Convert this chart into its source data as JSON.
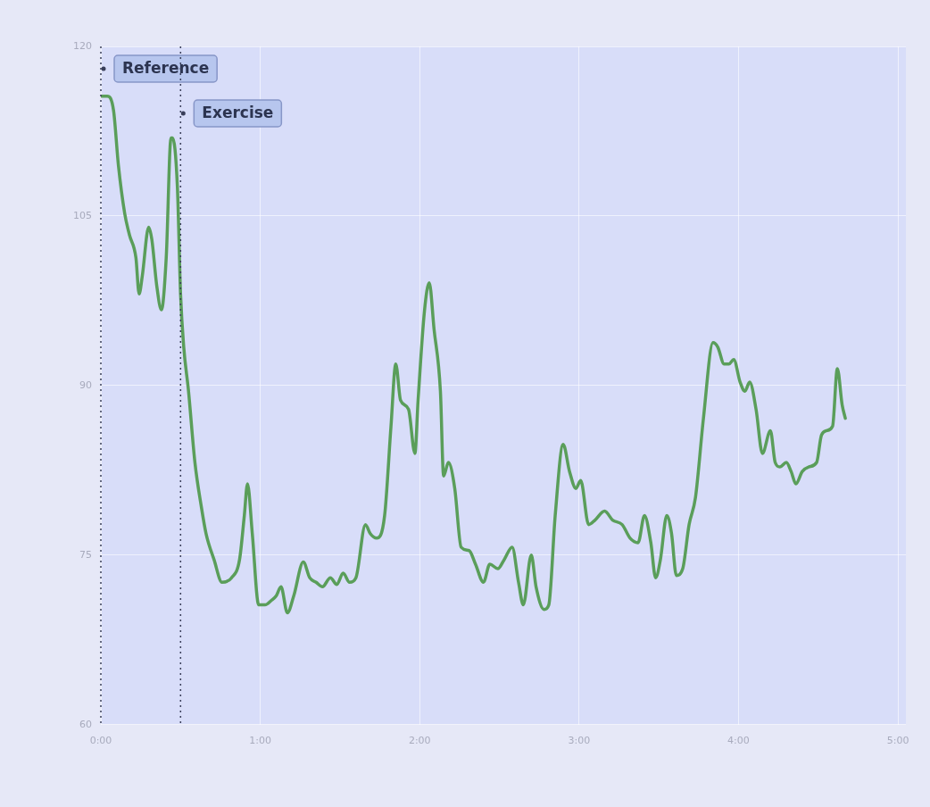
{
  "chart_data": {
    "type": "line",
    "x": [
      0,
      0.04,
      0.08,
      0.11,
      0.15,
      0.18,
      0.22,
      0.24,
      0.26,
      0.3,
      0.32,
      0.35,
      0.38,
      0.41,
      0.44,
      0.45,
      0.48,
      0.5,
      0.52,
      0.55,
      0.59,
      0.63,
      0.66,
      0.71,
      0.76,
      0.82,
      0.87,
      0.9,
      0.92,
      0.95,
      0.99,
      1.03,
      1.07,
      1.1,
      1.13,
      1.17,
      1.21,
      1.27,
      1.31,
      1.35,
      1.39,
      1.44,
      1.48,
      1.52,
      1.56,
      1.6,
      1.66,
      1.69,
      1.73,
      1.78,
      1.82,
      1.85,
      1.88,
      1.93,
      1.97,
      1.99,
      2.03,
      2.06,
      2.09,
      2.13,
      2.15,
      2.18,
      2.22,
      2.26,
      2.31,
      2.35,
      2.4,
      2.44,
      2.49,
      2.53,
      2.58,
      2.62,
      2.65,
      2.7,
      2.73,
      2.78,
      2.81,
      2.85,
      2.9,
      2.94,
      2.98,
      3.01,
      3.06,
      3.1,
      3.16,
      3.21,
      3.27,
      3.32,
      3.37,
      3.41,
      3.45,
      3.48,
      3.51,
      3.55,
      3.58,
      3.61,
      3.65,
      3.69,
      3.73,
      3.78,
      3.84,
      3.87,
      3.91,
      3.94,
      3.97,
      4.01,
      4.04,
      4.07,
      4.11,
      4.15,
      4.2,
      4.23,
      4.26,
      4.3,
      4.33,
      4.36,
      4.4,
      4.44,
      4.49,
      4.52,
      4.55,
      4.59,
      4.62,
      4.65,
      4.67
    ],
    "series": [
      {
        "color": "#5a9e5a",
        "values": [
          115.6,
          115.6,
          114.3,
          109.5,
          105.2,
          103.3,
          101.3,
          98.1,
          99.7,
          104.0,
          102.9,
          98.9,
          96.7,
          101.3,
          111.9,
          111.9,
          107.6,
          98.1,
          93.4,
          89.5,
          83.2,
          79.3,
          76.9,
          74.6,
          72.6,
          73.0,
          74.6,
          78.5,
          81.3,
          76.9,
          70.6,
          70.6,
          71.0,
          71.4,
          72.2,
          69.9,
          71.4,
          74.4,
          73.0,
          72.6,
          72.2,
          73.0,
          72.4,
          73.4,
          72.6,
          73.0,
          77.7,
          76.9,
          76.5,
          78.5,
          86.4,
          91.9,
          88.7,
          87.9,
          84.0,
          88.7,
          96.6,
          99.1,
          95.0,
          89.5,
          82.0,
          83.2,
          80.9,
          75.7,
          75.4,
          74.2,
          72.6,
          74.2,
          73.8,
          74.6,
          75.7,
          72.6,
          70.6,
          75.0,
          72.2,
          70.2,
          70.6,
          78.5,
          84.8,
          82.4,
          80.9,
          81.6,
          77.7,
          78.1,
          78.9,
          78.1,
          77.7,
          76.5,
          76.1,
          78.5,
          76.1,
          73.0,
          74.6,
          78.5,
          76.9,
          73.2,
          73.8,
          77.7,
          80.1,
          87.1,
          93.8,
          93.4,
          91.9,
          91.9,
          92.3,
          90.3,
          89.5,
          90.3,
          87.9,
          84.0,
          86.0,
          83.2,
          82.8,
          83.2,
          82.4,
          81.3,
          82.4,
          82.8,
          83.2,
          85.6,
          86.0,
          86.4,
          91.5,
          88.3,
          87.1
        ]
      }
    ],
    "xlim": [
      0,
      5.05
    ],
    "xticks": [
      {
        "value": 0,
        "label": "0:00"
      },
      {
        "value": 1,
        "label": "1:00"
      },
      {
        "value": 2,
        "label": "2:00"
      },
      {
        "value": 3,
        "label": "3:00"
      },
      {
        "value": 4,
        "label": "4:00"
      },
      {
        "value": 5,
        "label": "5:00"
      }
    ],
    "ylim": [
      60,
      120
    ],
    "yticks": [
      60,
      75,
      90,
      105,
      120
    ],
    "ref_lines": [
      {
        "axis": "x",
        "value": 0,
        "label": "Reference",
        "line_style": "dotted"
      },
      {
        "axis": "x",
        "value": 0.5,
        "label": "Exercise",
        "line_style": "dotted"
      }
    ],
    "grid": true,
    "legend": false,
    "marker": "none",
    "line_style": "solid"
  }
}
